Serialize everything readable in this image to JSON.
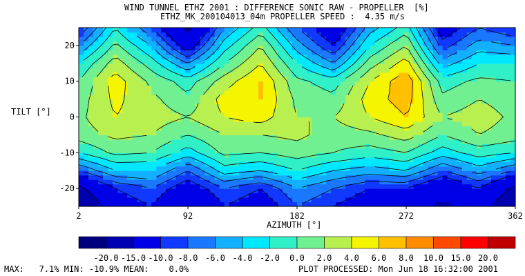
{
  "chart_data": {
    "type": "heatmap",
    "title": "WIND TUNNEL ETHZ 2001 : DIFFERENCE SONIC RAW - PROPELLER  [%]",
    "subtitle": "ETHZ_MK_200104013_04m PROPELLER SPEED :  4.35 m/s",
    "xlabel": "AZIMUTH [°]",
    "ylabel": "TILT [°]",
    "xlim": [
      2,
      362
    ],
    "ylim": [
      -25,
      25
    ],
    "x_ticks": [
      2,
      92,
      182,
      272,
      362
    ],
    "y_ticks": [
      -20,
      -10,
      0,
      10,
      20
    ],
    "x": [
      2,
      32,
      62,
      92,
      122,
      152,
      182,
      212,
      242,
      272,
      302,
      332,
      362
    ],
    "y": [
      -25,
      -20,
      -15,
      -10,
      -5,
      0,
      5,
      10,
      15,
      20,
      25
    ],
    "z": [
      [
        -20,
        -12,
        -10,
        -15,
        -10,
        -12,
        -8,
        -10,
        -12,
        -12,
        -16,
        -12,
        -20
      ],
      [
        -16,
        -10,
        -8,
        -12,
        -8,
        -10,
        -6,
        -8,
        -10,
        -10,
        -14,
        -10,
        -16
      ],
      [
        -8,
        -4,
        -4,
        -8,
        -3,
        -4,
        -2,
        -4,
        -5,
        -4,
        -8,
        -5,
        -8
      ],
      [
        -2,
        0.5,
        0,
        -3,
        0.5,
        0,
        1,
        0,
        -1,
        0,
        -3,
        -1,
        -2
      ],
      [
        1,
        2.5,
        2,
        0,
        2,
        2,
        2.5,
        1,
        1.5,
        3,
        0,
        2,
        1
      ],
      [
        1.5,
        4,
        3,
        2,
        4,
        5,
        2,
        2,
        4,
        6,
        2,
        3,
        1.5
      ],
      [
        1,
        4.5,
        2.5,
        0.5,
        5,
        6,
        1.5,
        0.5,
        5,
        7,
        0.5,
        2,
        1
      ],
      [
        0,
        5,
        1.5,
        -1,
        3,
        6,
        0.5,
        -1,
        4,
        7.5,
        -1,
        0.5,
        0
      ],
      [
        -2,
        3,
        -1,
        -6,
        0,
        4,
        -2,
        -6,
        1,
        5,
        -5,
        -2,
        -2
      ],
      [
        -6,
        0.5,
        -4,
        -12,
        -3,
        2,
        -5,
        -10,
        -2,
        2,
        -9,
        -5,
        -6
      ],
      [
        -10,
        -2,
        -8,
        -16,
        -6,
        -1,
        -8,
        -13,
        -5,
        -1,
        -12,
        -8,
        -10
      ]
    ],
    "colorbar": {
      "levels": [
        "-20.0",
        "-15.0",
        "-10.0",
        "-8.0",
        "-6.0",
        "-4.0",
        "-2.0",
        "0.0",
        "2.0",
        "4.0",
        "6.0",
        "8.0",
        "10.0",
        "15.0",
        "20.0"
      ],
      "colors": [
        "#00007e",
        "#0000b0",
        "#0000e6",
        "#1038ff",
        "#1a78ff",
        "#12b0ff",
        "#00e8ff",
        "#30f0c8",
        "#70f090",
        "#b8f050",
        "#f5f500",
        "#ffc000",
        "#ff8c00",
        "#ff4800",
        "#ff0000",
        "#c00000"
      ]
    }
  },
  "stats": {
    "max_label": "MAX:",
    "max_value": "7.1%",
    "min_label": "MIN:",
    "min_value": "-10.9%",
    "mean_label": "MEAN:",
    "mean_value": "0.0%"
  },
  "footer": {
    "processed": "PLOT PROCESSED: Mon Jun 18 16:32:00 2001"
  }
}
